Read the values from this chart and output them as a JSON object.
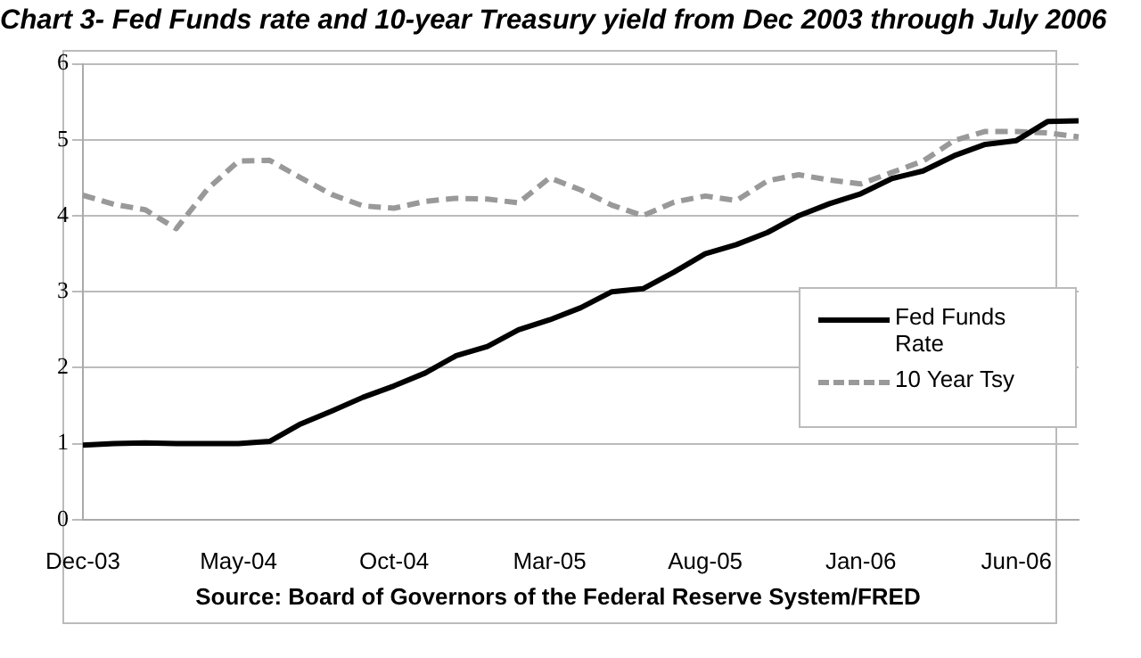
{
  "chart_data": {
    "type": "line",
    "title": "Chart 3- Fed Funds rate and 10-year Treasury yield from Dec 2003 through July 2006",
    "categories": [
      "Dec-03",
      null,
      null,
      null,
      null,
      "May-04",
      null,
      null,
      null,
      null,
      "Oct-04",
      null,
      null,
      null,
      null,
      "Mar-05",
      null,
      null,
      null,
      null,
      "Aug-05",
      null,
      null,
      null,
      null,
      "Jan-06",
      null,
      null,
      null,
      null,
      "Jun-06",
      null,
      null
    ],
    "series": [
      {
        "name": "Fed Funds Rate",
        "color": "#000000",
        "line_style": "solid",
        "values": [
          0.98,
          1.0,
          1.01,
          1.0,
          1.0,
          1.0,
          1.03,
          1.26,
          1.43,
          1.61,
          1.76,
          1.93,
          2.16,
          2.28,
          2.5,
          2.63,
          2.79,
          3.0,
          3.04,
          3.26,
          3.5,
          3.62,
          3.78,
          4.0,
          4.16,
          4.29,
          4.49,
          4.59,
          4.79,
          4.94,
          4.99,
          5.24,
          5.25
        ]
      },
      {
        "name": "10 Year Tsy",
        "color": "#999999",
        "line_style": "dashed",
        "values": [
          4.27,
          4.15,
          4.08,
          3.83,
          4.35,
          4.72,
          4.73,
          4.5,
          4.28,
          4.13,
          4.1,
          4.19,
          4.23,
          4.22,
          4.17,
          4.5,
          4.34,
          4.14,
          4.0,
          4.18,
          4.26,
          4.2,
          4.46,
          4.54,
          4.47,
          4.42,
          4.57,
          4.72,
          4.99,
          5.11,
          5.11,
          5.09,
          5.04
        ]
      }
    ],
    "ylim": [
      0,
      6
    ],
    "yticks": [
      0,
      1,
      2,
      3,
      4,
      5,
      6
    ],
    "grid": "y",
    "legend": "right",
    "marker": "none",
    "annotations": [
      "Source: Board of Governors of the Federal Reserve System/FRED"
    ]
  }
}
